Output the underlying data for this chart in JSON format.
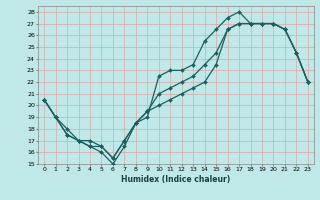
{
  "xlabel": "Humidex (Indice chaleur)",
  "bg_color": "#c0e8e8",
  "grid_color": "#d8a8a8",
  "line_color": "#1a6060",
  "xlim": [
    -0.5,
    23.5
  ],
  "ylim": [
    15,
    28.5
  ],
  "xticks": [
    0,
    1,
    2,
    3,
    4,
    5,
    6,
    7,
    8,
    9,
    10,
    11,
    12,
    13,
    14,
    15,
    16,
    17,
    18,
    19,
    20,
    21,
    22,
    23
  ],
  "yticks": [
    15,
    16,
    17,
    18,
    19,
    20,
    21,
    22,
    23,
    24,
    25,
    26,
    27,
    28
  ],
  "line1_x": [
    0,
    1,
    2,
    3,
    4,
    5,
    6,
    7,
    8,
    9,
    10,
    11,
    12,
    13,
    14,
    15,
    16,
    17,
    18,
    19,
    20,
    21,
    22,
    23
  ],
  "line1_y": [
    20.5,
    19,
    17.5,
    17,
    16.5,
    16,
    15,
    16.5,
    18.5,
    19,
    22.5,
    23,
    23,
    23.5,
    25.5,
    26.5,
    27.5,
    28,
    27,
    27,
    27,
    26.5,
    24.5,
    22
  ],
  "line2_x": [
    0,
    1,
    2,
    3,
    4,
    5,
    6,
    7,
    8,
    9,
    10,
    11,
    12,
    13,
    14,
    15,
    16,
    17,
    18,
    19,
    20,
    21,
    22,
    23
  ],
  "line2_y": [
    20.5,
    19,
    17.5,
    17,
    16.5,
    16.5,
    15.5,
    17,
    18.5,
    19.5,
    21,
    21.5,
    22,
    22.5,
    23.5,
    24.5,
    26.5,
    27,
    27,
    27,
    27,
    26.5,
    24.5,
    22
  ],
  "line3_x": [
    0,
    1,
    2,
    3,
    4,
    5,
    6,
    7,
    8,
    9,
    10,
    11,
    12,
    13,
    14,
    15,
    16,
    17,
    18,
    19,
    20,
    21,
    22,
    23
  ],
  "line3_y": [
    20.5,
    19,
    18,
    17,
    17,
    16.5,
    15.5,
    17,
    18.5,
    19.5,
    20,
    20.5,
    21,
    21.5,
    22,
    23.5,
    26.5,
    27,
    27,
    27,
    27,
    26.5,
    24.5,
    22
  ]
}
